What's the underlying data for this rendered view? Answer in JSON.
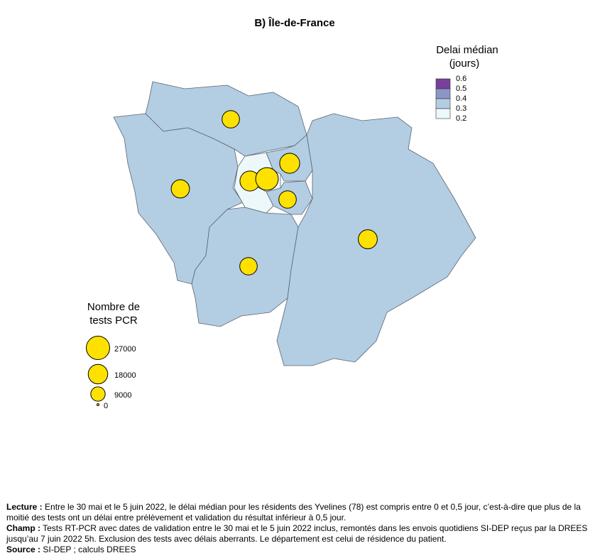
{
  "title": "B) Île-de-France",
  "fill_legend": {
    "title_line1": "Delai médian",
    "title_line2": "(jours)",
    "ticks": [
      0.6,
      0.5,
      0.4,
      0.3,
      0.2
    ],
    "colors": [
      "#7a3f9a",
      "#8c96c6",
      "#b3cde3",
      "#edf8fb"
    ]
  },
  "size_legend": {
    "title_line1": "Nombre de",
    "title_line2": "tests PCR",
    "values": [
      27000,
      18000,
      9000,
      0
    ]
  },
  "bubble_color": "#ffe100",
  "departments": [
    {
      "value": 14000,
      "color": "#b3cde3"
    },
    {
      "value": 15500,
      "color": "#b3cde3"
    },
    {
      "value": 14000,
      "color": "#b3cde3"
    },
    {
      "value": 17000,
      "color": "#b3cde3"
    },
    {
      "value": 19000,
      "color": "#edf8fb"
    },
    {
      "value": 19000,
      "color": "#b3cde3"
    },
    {
      "value": 14000,
      "color": "#b3cde3"
    },
    {
      "value": 25000,
      "color": "#edf8fb"
    }
  ],
  "notes": {
    "lecture": {
      "label": "Lecture :",
      "text": "Entre le 30 mai et le 5 juin 2022, le délai médian pour les résidents des Yvelines (78) est compris entre 0 et 0,5 jour, c’est-à-dire que plus de la moitié des tests ont un délai entre prélèvement et validation du résultat inférieur à 0,5 jour."
    },
    "champ": {
      "label": "Champ :",
      "text": "Tests RT-PCR avec dates de validation entre le 30 mai et le 5 juin 2022 inclus, remontés dans les envois quotidiens SI-DEP reçus par la DREES jusqu’au 7 juin 2022 5h. Exclusion des tests avec délais aberrants. Le département est celui de résidence du patient."
    },
    "source": {
      "label": "Source :",
      "text": "SI-DEP ; calculs DREES"
    }
  }
}
